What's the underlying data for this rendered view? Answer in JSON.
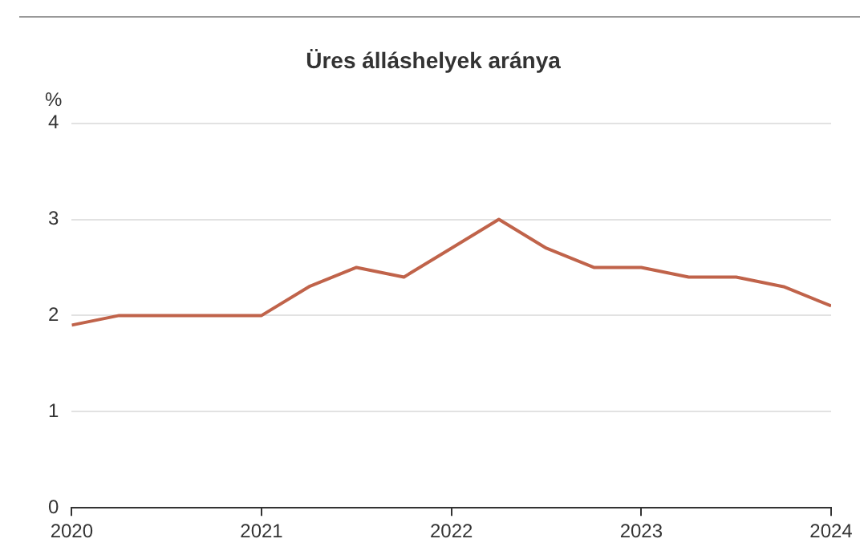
{
  "chart_data": {
    "type": "line",
    "title": "Üres álláshelyek aránya",
    "ylabel": "%",
    "x": [
      2020,
      2020.25,
      2020.5,
      2020.75,
      2021,
      2021.25,
      2021.5,
      2021.75,
      2022,
      2022.25,
      2022.5,
      2022.75,
      2023,
      2023.25,
      2023.5,
      2023.75,
      2024
    ],
    "series": [
      {
        "color": "#c0634a",
        "values": [
          1.9,
          2.0,
          2.0,
          2.0,
          2.0,
          2.3,
          2.5,
          2.4,
          2.7,
          3.0,
          2.7,
          2.5,
          2.5,
          2.4,
          2.4,
          2.3,
          2.1
        ]
      }
    ],
    "xlim": [
      2020,
      2024
    ],
    "xticks": [
      2020,
      2021,
      2022,
      2023,
      2024
    ],
    "ylim": [
      0,
      4
    ],
    "yticks": [
      0,
      1,
      2,
      3,
      4
    ],
    "grid": "y",
    "legend": false,
    "marker": "none",
    "line_style": "solid"
  }
}
